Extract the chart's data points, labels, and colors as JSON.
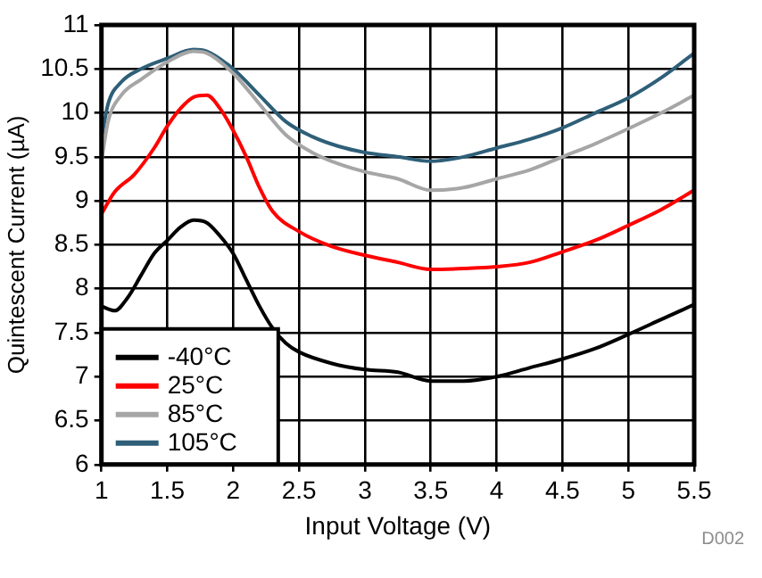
{
  "chart_data": {
    "type": "line",
    "xlabel": "Input Voltage (V)",
    "ylabel": "Quintescent Current (µA)",
    "annotations": [
      "D002"
    ],
    "xlim": [
      1,
      5.5
    ],
    "xticks": [
      1,
      1.5,
      2,
      2.5,
      3,
      3.5,
      4,
      4.5,
      5,
      5.5
    ],
    "ylim": [
      6,
      11
    ],
    "yticks": [
      6,
      6.5,
      7,
      7.5,
      8,
      8.5,
      9,
      9.5,
      10,
      10.5,
      11
    ],
    "grid": true,
    "legend": "bottom left",
    "marker": "none",
    "line_style": "solid",
    "series": [
      {
        "name": "-40°C",
        "color": "#000000",
        "x": [
          1,
          1.1,
          1.2,
          1.3,
          1.4,
          1.5,
          1.6,
          1.7,
          1.8,
          1.9,
          2,
          2.1,
          2.2,
          2.3,
          2.4,
          2.5,
          2.75,
          3,
          3.25,
          3.5,
          3.75,
          4,
          4.25,
          4.5,
          4.75,
          5,
          5.25,
          5.5
        ],
        "values": [
          7.8,
          7.75,
          7.9,
          8.15,
          8.4,
          8.55,
          8.7,
          8.78,
          8.75,
          8.6,
          8.4,
          8.1,
          7.8,
          7.55,
          7.38,
          7.28,
          7.15,
          7.08,
          7.05,
          6.95,
          6.95,
          7,
          7.1,
          7.2,
          7.32,
          7.48,
          7.65,
          7.82
        ]
      },
      {
        "name": "25°C",
        "color": "#ff0000",
        "x": [
          1,
          1.1,
          1.25,
          1.4,
          1.5,
          1.6,
          1.7,
          1.8,
          1.9,
          2,
          2.1,
          2.2,
          2.3,
          2.5,
          2.75,
          3,
          3.25,
          3.5,
          3.75,
          4,
          4.25,
          4.5,
          4.75,
          5,
          5.25,
          5.5
        ],
        "values": [
          8.85,
          9.1,
          9.3,
          9.6,
          9.85,
          10.05,
          10.18,
          10.2,
          10.05,
          9.8,
          9.5,
          9.15,
          8.88,
          8.65,
          8.48,
          8.38,
          8.3,
          8.22,
          8.23,
          8.25,
          8.3,
          8.42,
          8.55,
          8.72,
          8.9,
          9.12
        ]
      },
      {
        "name": "85°C",
        "color": "#a6a6a6",
        "x": [
          1,
          1.05,
          1.15,
          1.3,
          1.5,
          1.7,
          1.8,
          2,
          2.2,
          2.4,
          2.6,
          2.8,
          3,
          3.25,
          3.5,
          3.75,
          4,
          4.25,
          4.5,
          4.75,
          5,
          5.25,
          5.5
        ],
        "values": [
          9.45,
          9.9,
          10.2,
          10.38,
          10.58,
          10.7,
          10.68,
          10.45,
          10.1,
          9.75,
          9.55,
          9.42,
          9.33,
          9.25,
          9.12,
          9.15,
          9.25,
          9.35,
          9.5,
          9.65,
          9.82,
          10,
          10.2
        ]
      },
      {
        "name": "105°C",
        "color": "#2f5f78",
        "x": [
          1,
          1.05,
          1.15,
          1.3,
          1.5,
          1.7,
          1.8,
          2,
          2.2,
          2.4,
          2.6,
          2.8,
          3,
          3.25,
          3.5,
          3.75,
          4,
          4.25,
          4.5,
          4.75,
          5,
          5.25,
          5.5
        ],
        "values": [
          9.7,
          10.1,
          10.35,
          10.5,
          10.62,
          10.72,
          10.7,
          10.5,
          10.2,
          9.9,
          9.73,
          9.62,
          9.55,
          9.5,
          9.45,
          9.5,
          9.6,
          9.7,
          9.83,
          10,
          10.17,
          10.4,
          10.68
        ]
      }
    ]
  }
}
